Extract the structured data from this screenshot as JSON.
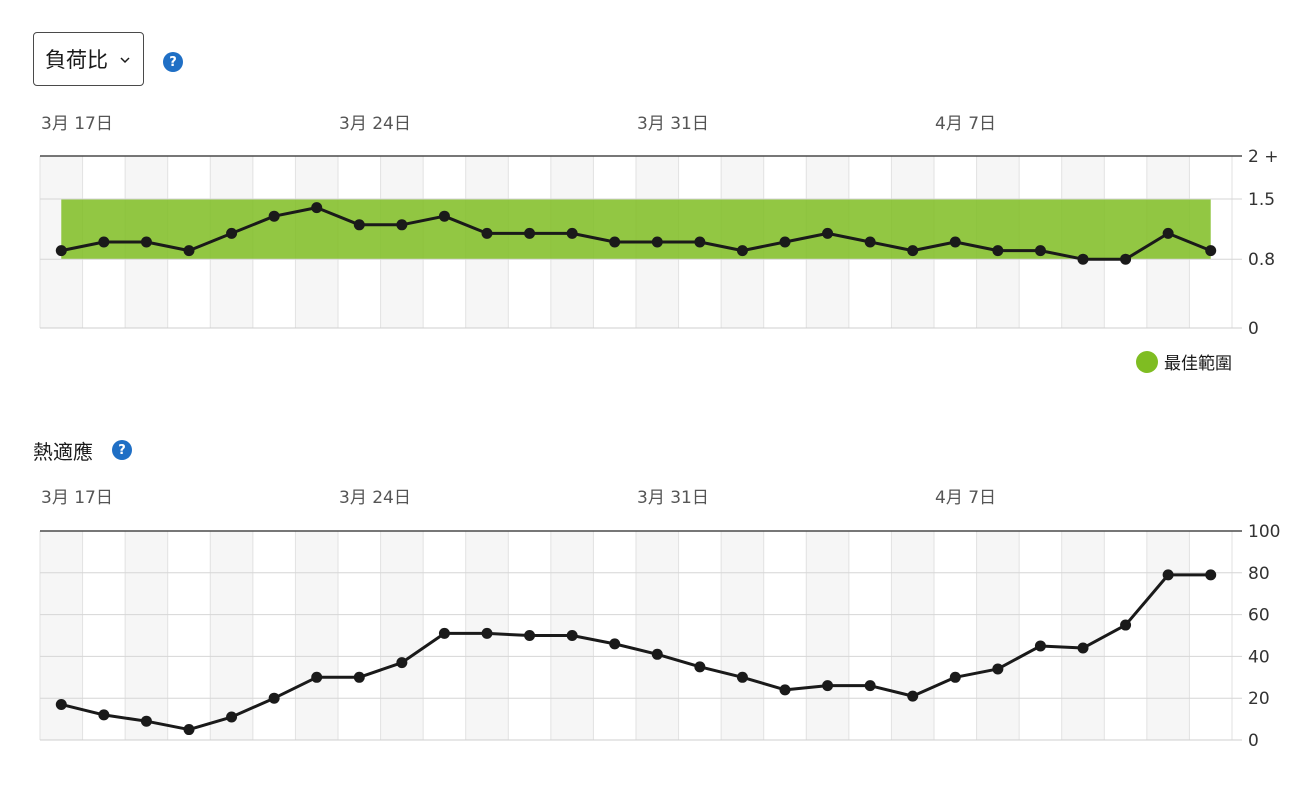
{
  "load_selector": {
    "label": "負荷比",
    "help": "?"
  },
  "heat_section": {
    "title": "熱適應",
    "help": "?"
  },
  "chart_data": [
    {
      "type": "line",
      "date_labels": [
        "3月 17日",
        "3月 24日",
        "3月 31日",
        "4月 7日"
      ],
      "y_tick_labels": [
        "2 +",
        "1.5",
        "0.8",
        "0"
      ],
      "y_ticks": [
        2,
        1.5,
        0.8,
        0
      ],
      "ylim": [
        0,
        2
      ],
      "optimal_range": [
        0.8,
        1.5
      ],
      "legend": [
        {
          "label": "最佳範圍",
          "color": "#7fbd22"
        }
      ],
      "grid": true,
      "series": [
        {
          "values": [
            0.9,
            1.0,
            1.0,
            0.9,
            1.1,
            1.3,
            1.4,
            1.2,
            1.2,
            1.3,
            1.1,
            1.1,
            1.1,
            1.0,
            1.0,
            1.0,
            0.9,
            1.0,
            1.1,
            1.0,
            0.9,
            1.0,
            0.9,
            0.9,
            0.8,
            0.8,
            1.1,
            0.9
          ]
        }
      ]
    },
    {
      "type": "line",
      "date_labels": [
        "3月 17日",
        "3月 24日",
        "3月 31日",
        "4月 7日"
      ],
      "y_tick_labels": [
        "100",
        "80",
        "60",
        "40",
        "20",
        "0"
      ],
      "y_ticks": [
        100,
        80,
        60,
        40,
        20,
        0
      ],
      "ylim": [
        0,
        100
      ],
      "grid": true,
      "series": [
        {
          "values": [
            17,
            12,
            9,
            5,
            11,
            20,
            30,
            30,
            37,
            51,
            51,
            50,
            50,
            46,
            41,
            35,
            30,
            24,
            26,
            26,
            21,
            30,
            34,
            45,
            44,
            55,
            79,
            79
          ]
        }
      ]
    }
  ],
  "colors": {
    "optimal": "#7fbd22",
    "line": "#1a1a1a",
    "help": "#1f6fc5"
  }
}
